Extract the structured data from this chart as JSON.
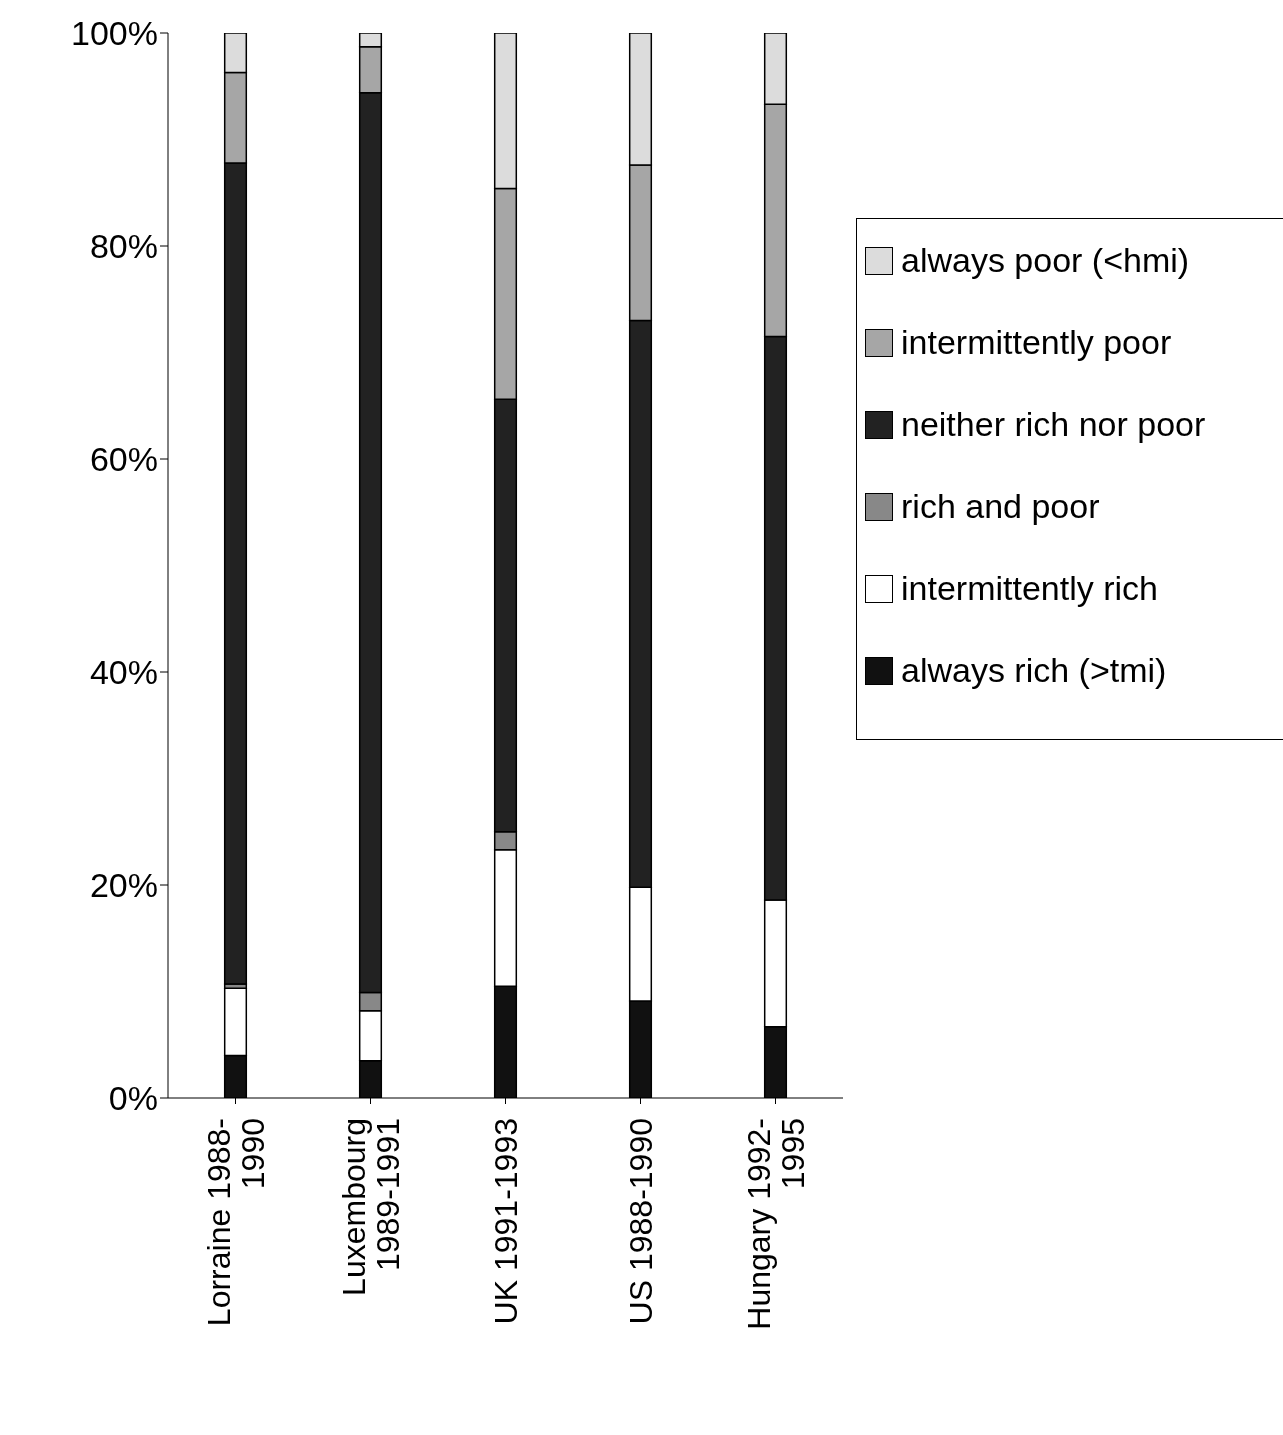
{
  "chart_data": {
    "type": "bar",
    "stacked": true,
    "categories": [
      "Lorraine 1988-1990",
      "Luxembourg 1989-1991",
      "UK 1991-1993",
      "US 1988-1990",
      "Hungary 1992-1995"
    ],
    "series": [
      {
        "name": "always rich (>tmi)",
        "color": "#111111",
        "values": [
          4.0,
          3.5,
          10.5,
          9.1,
          6.7
        ]
      },
      {
        "name": "intermittently rich",
        "color": "#ffffff",
        "values": [
          6.3,
          4.7,
          12.8,
          10.7,
          11.9
        ]
      },
      {
        "name": "rich and poor",
        "color": "#888888",
        "values": [
          0.4,
          1.7,
          1.7,
          0,
          0
        ]
      },
      {
        "name": "neither rich nor poor",
        "color": "#222222",
        "values": [
          77.1,
          84.5,
          40.6,
          53.2,
          52.9
        ]
      },
      {
        "name": "intermittently poor",
        "color": "#a6a6a6",
        "values": [
          8.5,
          4.3,
          19.8,
          14.6,
          21.8
        ]
      },
      {
        "name": "always poor (<hmi)",
        "color": "#dcdcdc",
        "values": [
          3.7,
          1.3,
          14.6,
          12.4,
          6.7
        ]
      }
    ],
    "ylim": [
      0,
      100
    ],
    "yticks": [
      {
        "value": 0,
        "label": "0%"
      },
      {
        "value": 20,
        "label": "20%"
      },
      {
        "value": 40,
        "label": "40%"
      },
      {
        "value": 60,
        "label": "60%"
      },
      {
        "value": 80,
        "label": "80%"
      },
      {
        "value": 100,
        "label": "100%"
      }
    ],
    "grid": false,
    "legend": "right"
  }
}
